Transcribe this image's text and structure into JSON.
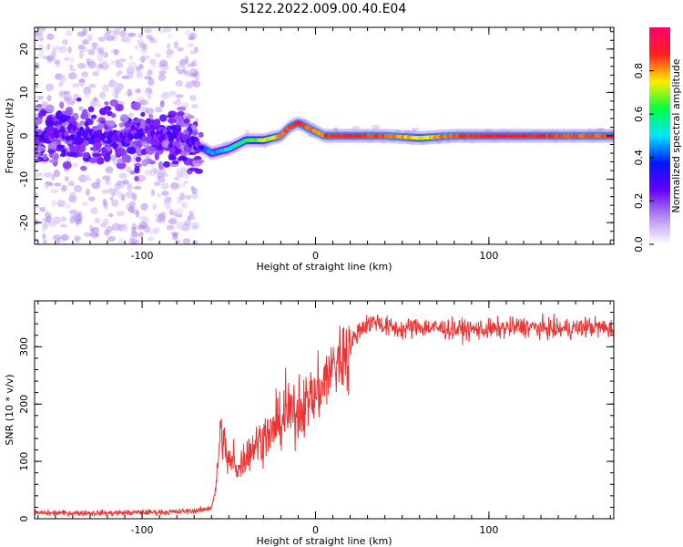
{
  "title": "S122.2022.009.00.40.E04",
  "chart_data": [
    {
      "type": "heatmap",
      "xlabel": "Height of straight line (km)",
      "ylabel": "Frequency (Hz)",
      "xlim": [
        -162,
        172
      ],
      "ylim": [
        -25,
        25
      ],
      "xticks": [
        -100,
        0,
        100
      ],
      "yticks": [
        -20,
        -10,
        0,
        10,
        20
      ],
      "colorbar": {
        "label": "Normalized spectral amplitude",
        "range": [
          0,
          1
        ],
        "ticks": [
          0.0,
          0.2,
          0.4,
          0.6,
          0.8
        ],
        "colormap": [
          "#ffffff",
          "#b58cf0",
          "#6a00ff",
          "#0014ff",
          "#00e4ff",
          "#00ff40",
          "#ffee00",
          "#ff2020",
          "#ff0070"
        ]
      },
      "ridge": {
        "x": [
          -162,
          -140,
          -120,
          -100,
          -80,
          -70,
          -64,
          -60,
          -50,
          -40,
          -30,
          -20,
          -15,
          -10,
          -5,
          0,
          5,
          20,
          40,
          60,
          80,
          100,
          120,
          140,
          160,
          172
        ],
        "frequency": [
          0,
          1,
          0,
          0,
          0,
          -2,
          -3,
          -4,
          -3,
          -1,
          -1,
          0,
          2,
          3,
          2,
          1,
          0,
          0,
          0,
          -0.5,
          0,
          0,
          0,
          0,
          0,
          0
        ],
        "amplitude": [
          0.2,
          0.2,
          0.25,
          0.2,
          0.25,
          0.3,
          0.4,
          0.45,
          0.5,
          0.6,
          0.7,
          0.8,
          0.85,
          0.9,
          0.85,
          0.8,
          0.85,
          0.9,
          0.85,
          0.75,
          0.85,
          0.9,
          0.9,
          0.85,
          0.85,
          0.85
        ]
      }
    },
    {
      "type": "line",
      "xlabel": "Height of straight line (km)",
      "ylabel": "SNR (10 * v/v)",
      "xlim": [
        -162,
        172
      ],
      "ylim": [
        0,
        380
      ],
      "xticks": [
        -100,
        0,
        100
      ],
      "yticks": [
        0,
        100,
        200,
        300
      ],
      "color": "#ee3333",
      "x": [
        -162,
        -120,
        -80,
        -65,
        -60,
        -57,
        -55,
        -52,
        -50,
        -45,
        -40,
        -35,
        -30,
        -25,
        -20,
        -15,
        -10,
        -5,
        0,
        5,
        10,
        15,
        20,
        25,
        30,
        35,
        40,
        50,
        60,
        80,
        100,
        120,
        140,
        160,
        172
      ],
      "y": [
        10,
        10,
        12,
        15,
        20,
        60,
        160,
        120,
        100,
        90,
        110,
        130,
        140,
        150,
        170,
        180,
        185,
        200,
        215,
        240,
        265,
        280,
        300,
        330,
        340,
        345,
        335,
        330,
        335,
        330,
        330,
        335,
        330,
        335,
        330
      ]
    }
  ]
}
